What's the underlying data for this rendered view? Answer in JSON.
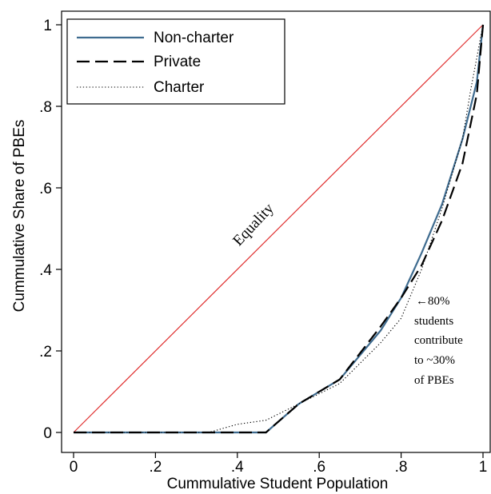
{
  "chart_data": {
    "type": "line",
    "xlabel": "Cummulative Student Population",
    "ylabel": "Cummulative Share of PBEs",
    "xlim": [
      0,
      1
    ],
    "ylim": [
      0,
      1
    ],
    "x_ticks": [
      {
        "value": 0,
        "label": "0"
      },
      {
        "value": 0.2,
        "label": ".2"
      },
      {
        "value": 0.4,
        "label": ".4"
      },
      {
        "value": 0.6,
        "label": ".6"
      },
      {
        "value": 0.8,
        "label": ".8"
      },
      {
        "value": 1,
        "label": "1"
      }
    ],
    "y_ticks": [
      {
        "value": 0,
        "label": "0"
      },
      {
        "value": 0.2,
        "label": ".2"
      },
      {
        "value": 0.4,
        "label": ".4"
      },
      {
        "value": 0.6,
        "label": ".6"
      },
      {
        "value": 0.8,
        "label": ".8"
      },
      {
        "value": 1,
        "label": "1"
      }
    ],
    "grid": false,
    "legend_position": "top-left",
    "equality_line": {
      "label": "Equality",
      "color": "#e03030",
      "x": [
        0,
        1
      ],
      "y": [
        0,
        1
      ]
    },
    "series": [
      {
        "name": "Non-charter",
        "style": "solid",
        "color": "#3e6b8f",
        "x": [
          0,
          0.47,
          0.55,
          0.65,
          0.75,
          0.8,
          0.85,
          0.9,
          0.95,
          0.985,
          1
        ],
        "y": [
          0,
          0,
          0.07,
          0.13,
          0.25,
          0.33,
          0.44,
          0.56,
          0.72,
          0.86,
          1
        ]
      },
      {
        "name": "Private",
        "style": "dashed",
        "color": "#000000",
        "x": [
          0,
          0.47,
          0.55,
          0.65,
          0.75,
          0.8,
          0.85,
          0.9,
          0.95,
          0.985,
          1
        ],
        "y": [
          0,
          0,
          0.07,
          0.13,
          0.26,
          0.33,
          0.41,
          0.52,
          0.66,
          0.83,
          1
        ]
      },
      {
        "name": "Charter",
        "style": "dotted",
        "color": "#000000",
        "x": [
          0,
          0.33,
          0.4,
          0.47,
          0.55,
          0.65,
          0.75,
          0.8,
          0.85,
          0.9,
          0.95,
          0.97,
          1
        ],
        "y": [
          0,
          0,
          0.02,
          0.03,
          0.07,
          0.12,
          0.22,
          0.28,
          0.4,
          0.55,
          0.72,
          0.84,
          1
        ]
      }
    ],
    "annotation": {
      "arrow": "←",
      "lines": [
        "80%",
        "students",
        "contribute",
        "to ~30%",
        "of PBEs"
      ]
    }
  }
}
